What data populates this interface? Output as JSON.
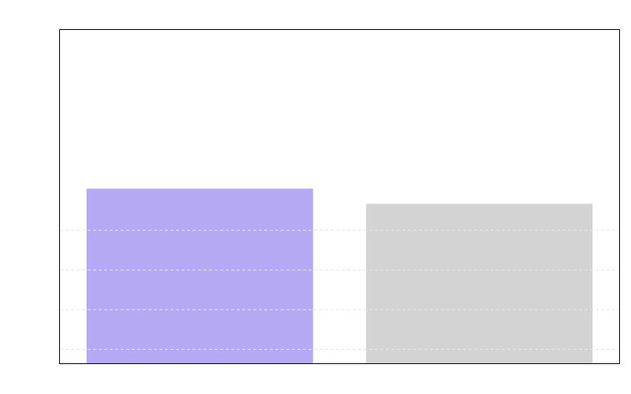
{
  "chart_data": {
    "type": "bar",
    "title": "",
    "xlabel": "",
    "ylabel": "",
    "categories": [
      "",
      ""
    ],
    "values": [
      4.4,
      4.02
    ],
    "colors": [
      "#b5a9f3",
      "#d3d3d3"
    ],
    "gridlines": [
      0.35,
      1.35,
      2.35,
      3.35
    ],
    "ylim": [
      0,
      8.4
    ],
    "grid": true,
    "legend": "none"
  }
}
